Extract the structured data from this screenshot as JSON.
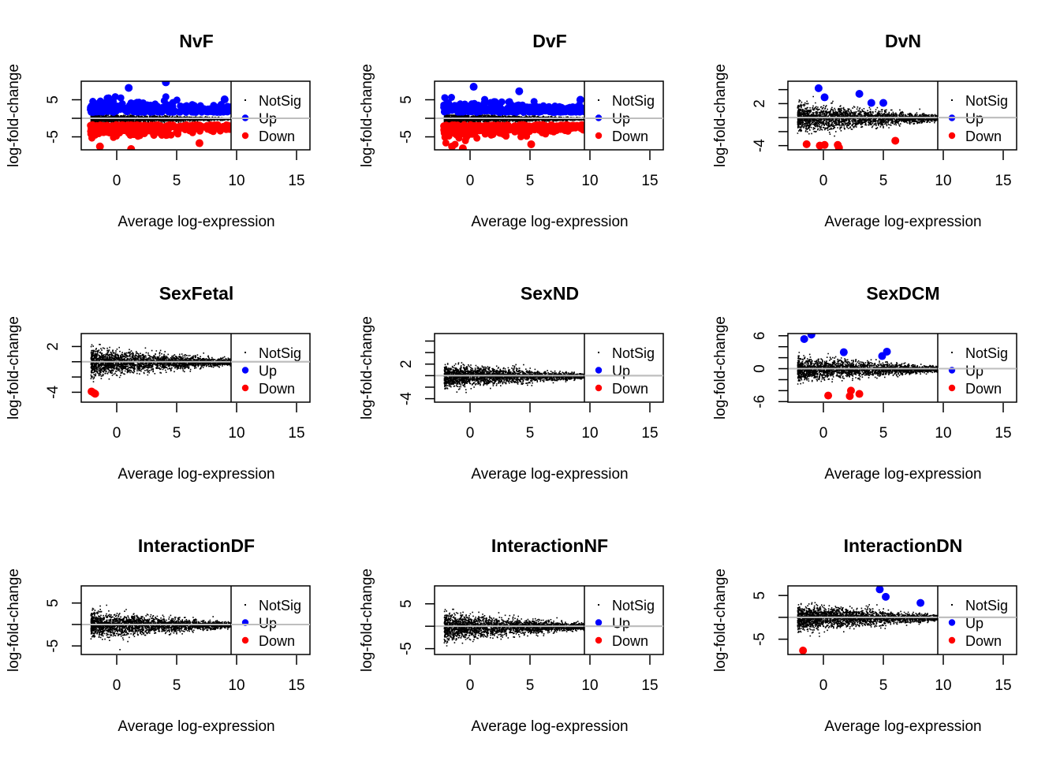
{
  "chart_data": {
    "type": "scatter",
    "layout": "3x3 grid",
    "common": {
      "xlabel": "Average log-expression",
      "ylabel": "log-fold-change",
      "xticks": [
        0,
        5,
        10,
        15
      ],
      "xlim": [
        -3,
        16
      ],
      "legend": {
        "position": "right",
        "entries": [
          {
            "label": "NotSig",
            "color": "#000000",
            "marker": "dot"
          },
          {
            "label": "Up",
            "color": "#0000FF",
            "marker": "circle"
          },
          {
            "label": "Down",
            "color": "#FF0000",
            "marker": "circle"
          }
        ]
      },
      "reference_line": {
        "y": 0,
        "color": "#BEBEBE"
      },
      "x_data_range": [
        -2.2,
        9.6
      ]
    },
    "panels": [
      {
        "title": "NvF",
        "ylim": [
          -8.5,
          10
        ],
        "yticks": [
          -5,
          0,
          5
        ],
        "ytick_labels": [
          "-5",
          "",
          "5"
        ],
        "notsig_spread": 1.2,
        "up_band": [
          0.8,
          6
        ],
        "down_band": [
          -6.5,
          -0.8
        ],
        "n_up": 260,
        "n_down": 320,
        "up_points": [
          [
            4.1,
            9.7
          ],
          [
            1.0,
            8.2
          ],
          [
            9.0,
            5.1
          ]
        ],
        "down_points": [
          [
            -1.4,
            -7.6
          ],
          [
            1.2,
            -8.3
          ],
          [
            6.9,
            -6.7
          ]
        ]
      },
      {
        "title": "DvF",
        "ylim": [
          -8.5,
          10
        ],
        "yticks": [
          -5,
          0,
          5
        ],
        "ytick_labels": [
          "-5",
          "",
          "5"
        ],
        "notsig_spread": 1.3,
        "up_band": [
          0.8,
          6.2
        ],
        "down_band": [
          -6.5,
          -0.8
        ],
        "n_up": 300,
        "n_down": 340,
        "up_points": [
          [
            0.3,
            8.5
          ],
          [
            4.1,
            7.3
          ],
          [
            9.2,
            5.0
          ]
        ],
        "down_points": [
          [
            -1.5,
            -7.6
          ],
          [
            -0.6,
            -8.1
          ],
          [
            5.1,
            -7.0
          ]
        ]
      },
      {
        "title": "DvN",
        "ylim": [
          -4.6,
          5.2
        ],
        "yticks": [
          -4,
          -2,
          0,
          2,
          4
        ],
        "ytick_labels": [
          "-4",
          "",
          "",
          "2",
          ""
        ],
        "notsig_spread": 2.0,
        "n_up": 0,
        "n_down": 0,
        "up_points": [
          [
            -0.4,
            4.2
          ],
          [
            0.1,
            2.9
          ],
          [
            3.0,
            3.4
          ],
          [
            4.0,
            2.1
          ],
          [
            5.0,
            2.1
          ]
        ],
        "down_points": [
          [
            -1.4,
            -3.8
          ],
          [
            -0.3,
            -4.0
          ],
          [
            0.1,
            -3.9
          ],
          [
            1.2,
            -3.9
          ],
          [
            1.3,
            -4.3
          ],
          [
            6.0,
            -3.3
          ]
        ]
      },
      {
        "title": "SexFetal",
        "ylim": [
          -5.3,
          3.7
        ],
        "yticks": [
          -4,
          -2,
          0,
          2
        ],
        "ytick_labels": [
          "-4",
          "",
          "",
          "2"
        ],
        "notsig_spread": 1.8,
        "n_up": 0,
        "n_down": 0,
        "up_points": [],
        "down_points": [
          [
            -2.1,
            -3.9
          ],
          [
            -1.9,
            -4.1
          ],
          [
            -1.8,
            -4.2
          ]
        ]
      },
      {
        "title": "SexND",
        "ylim": [
          -4.6,
          7.3
        ],
        "yticks": [
          -4,
          -2,
          0,
          2,
          4,
          6
        ],
        "ytick_labels": [
          "-4",
          "",
          "",
          "2",
          "",
          ""
        ],
        "notsig_spread": 2.0,
        "n_up": 0,
        "n_down": 0,
        "up_points": [],
        "down_points": []
      },
      {
        "title": "SexDCM",
        "ylim": [
          -6.1,
          6.4
        ],
        "yticks": [
          -6,
          -4,
          -2,
          0,
          2,
          4,
          6
        ],
        "ytick_labels": [
          "-6",
          "",
          "",
          "0",
          "",
          "",
          "6"
        ],
        "notsig_spread": 2.2,
        "n_up": 0,
        "n_down": 0,
        "up_points": [
          [
            -1.6,
            5.4
          ],
          [
            -1.0,
            6.2
          ],
          [
            1.7,
            3.0
          ],
          [
            4.9,
            2.3
          ],
          [
            5.3,
            3.1
          ]
        ],
        "down_points": [
          [
            0.4,
            -4.9
          ],
          [
            2.2,
            -5.0
          ],
          [
            2.3,
            -4.0
          ],
          [
            3.0,
            -4.6
          ]
        ]
      },
      {
        "title": "InteractionDF",
        "ylim": [
          -7.0,
          9.0
        ],
        "yticks": [
          -5,
          0,
          5
        ],
        "ytick_labels": [
          "-5",
          "",
          "5"
        ],
        "notsig_spread": 3.0,
        "n_up": 0,
        "n_down": 0,
        "up_points": [],
        "down_points": []
      },
      {
        "title": "InteractionNF",
        "ylim": [
          -6.3,
          9.0
        ],
        "yticks": [
          -5,
          0,
          5
        ],
        "ytick_labels": [
          "-5",
          "",
          "5"
        ],
        "notsig_spread": 3.0,
        "n_up": 0,
        "n_down": 0,
        "up_points": [],
        "down_points": []
      },
      {
        "title": "InteractionDN",
        "ylim": [
          -8.5,
          7.2
        ],
        "yticks": [
          -5,
          0,
          5
        ],
        "ytick_labels": [
          "-5",
          "",
          "5"
        ],
        "notsig_spread": 3.0,
        "n_up": 0,
        "n_down": 0,
        "up_points": [
          [
            4.7,
            6.4
          ],
          [
            5.2,
            4.7
          ],
          [
            8.1,
            3.3
          ]
        ],
        "down_points": [
          [
            -1.7,
            -7.6
          ]
        ]
      }
    ]
  }
}
